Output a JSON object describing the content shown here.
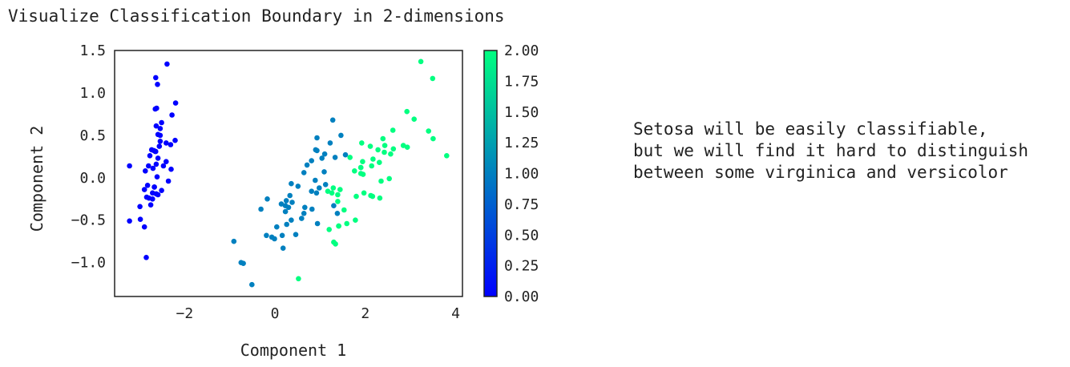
{
  "chart_data": {
    "type": "scatter",
    "title": "Visualize Classification Boundary in 2-dimensions",
    "xlabel": "Component 1",
    "ylabel": "Component 2",
    "xlim": [
      -3.55,
      4.15
    ],
    "ylim": [
      -1.4,
      1.5
    ],
    "xticks": [
      "−2",
      "0",
      "2",
      "4"
    ],
    "xtick_values": [
      -2,
      0,
      2,
      4
    ],
    "yticks": [
      "1.5",
      "1.0",
      "0.5",
      "0.0",
      "−0.5",
      "−1.0"
    ],
    "ytick_values": [
      1.5,
      1.0,
      0.5,
      0.0,
      -0.5,
      -1.0
    ],
    "grid": false,
    "colormap": "winter",
    "colormap_colors": [
      "#0000ff",
      "#00ff80"
    ],
    "colorbar": {
      "range": [
        0,
        2
      ],
      "ticks": [
        "2.00",
        "1.75",
        "1.50",
        "1.25",
        "1.00",
        "0.75",
        "0.50",
        "0.25",
        "0.00"
      ],
      "tick_values": [
        2.0,
        1.75,
        1.5,
        1.25,
        1.0,
        0.75,
        0.5,
        0.25,
        0.0
      ]
    },
    "series": [
      {
        "class_value": 0,
        "color": "#0000ff",
        "points": [
          [
            -2.68,
            0.32
          ],
          [
            -2.71,
            -0.18
          ],
          [
            -2.89,
            -0.14
          ],
          [
            -2.75,
            -0.32
          ],
          [
            -2.73,
            0.33
          ],
          [
            -2.28,
            0.74
          ],
          [
            -2.82,
            -0.09
          ],
          [
            -2.63,
            0.16
          ],
          [
            -2.89,
            -0.58
          ],
          [
            -2.67,
            -0.11
          ],
          [
            -2.51,
            0.65
          ],
          [
            -2.61,
            0.01
          ],
          [
            -2.79,
            -0.24
          ],
          [
            -3.22,
            -0.51
          ],
          [
            -2.64,
            1.18
          ],
          [
            -2.39,
            1.34
          ],
          [
            -2.62,
            0.82
          ],
          [
            -2.65,
            0.31
          ],
          [
            -2.2,
            0.88
          ],
          [
            -2.59,
            0.51
          ],
          [
            -2.31,
            0.39
          ],
          [
            -2.54,
            0.43
          ],
          [
            -3.22,
            0.14
          ],
          [
            -2.3,
            0.1
          ],
          [
            -2.36,
            -0.04
          ],
          [
            -2.51,
            -0.15
          ],
          [
            -2.47,
            0.14
          ],
          [
            -2.56,
            0.37
          ],
          [
            -2.64,
            0.31
          ],
          [
            -2.63,
            -0.19
          ],
          [
            -2.59,
            -0.2
          ],
          [
            -2.41,
            0.41
          ],
          [
            -2.65,
            0.81
          ],
          [
            -2.6,
            1.1
          ],
          [
            -2.67,
            -0.11
          ],
          [
            -2.87,
            0.08
          ],
          [
            -2.63,
            0.61
          ],
          [
            -2.8,
            0.14
          ],
          [
            -2.98,
            -0.49
          ],
          [
            -2.59,
            0.23
          ],
          [
            -2.77,
            0.26
          ],
          [
            -2.85,
            -0.94
          ],
          [
            -2.99,
            -0.34
          ],
          [
            -2.41,
            0.19
          ],
          [
            -2.21,
            0.44
          ],
          [
            -2.71,
            -0.25
          ],
          [
            -2.54,
            0.5
          ],
          [
            -2.84,
            -0.23
          ],
          [
            -2.54,
            0.58
          ],
          [
            -2.7,
            0.11
          ]
        ]
      },
      {
        "class_value": 1,
        "color": "#0080bf",
        "points": [
          [
            1.28,
            0.68
          ],
          [
            0.93,
            0.32
          ],
          [
            1.46,
            0.5
          ],
          [
            0.18,
            -0.83
          ],
          [
            1.09,
            0.07
          ],
          [
            0.64,
            -0.42
          ],
          [
            1.1,
            0.28
          ],
          [
            -0.75,
            -1.0
          ],
          [
            1.04,
            0.23
          ],
          [
            -0.01,
            -0.72
          ],
          [
            -0.51,
            -1.26
          ],
          [
            0.51,
            -0.1
          ],
          [
            0.26,
            -0.55
          ],
          [
            0.98,
            -0.12
          ],
          [
            -0.17,
            -0.25
          ],
          [
            0.93,
            0.47
          ],
          [
            0.66,
            -0.35
          ],
          [
            0.23,
            -0.33
          ],
          [
            0.94,
            -0.54
          ],
          [
            0.04,
            -0.58
          ],
          [
            1.12,
            -0.08
          ],
          [
            0.36,
            -0.07
          ],
          [
            1.3,
            -0.33
          ],
          [
            0.92,
            -0.18
          ],
          [
            0.71,
            0.15
          ],
          [
            0.9,
            0.33
          ],
          [
            1.33,
            0.24
          ],
          [
            1.56,
            0.27
          ],
          [
            0.81,
            -0.16
          ],
          [
            -0.31,
            -0.37
          ],
          [
            -0.07,
            -0.7
          ],
          [
            -0.19,
            -0.68
          ],
          [
            0.14,
            -0.31
          ],
          [
            1.38,
            -0.42
          ],
          [
            0.59,
            -0.48
          ],
          [
            0.81,
            0.2
          ],
          [
            1.22,
            0.41
          ],
          [
            0.82,
            -0.37
          ],
          [
            0.25,
            -0.27
          ],
          [
            0.16,
            -0.68
          ],
          [
            0.46,
            -0.67
          ],
          [
            0.89,
            -0.03
          ],
          [
            0.23,
            -0.4
          ],
          [
            -0.7,
            -1.01
          ],
          [
            0.36,
            -0.5
          ],
          [
            0.33,
            -0.21
          ],
          [
            0.38,
            -0.29
          ],
          [
            0.64,
            0.06
          ],
          [
            -0.91,
            -0.75
          ],
          [
            0.3,
            -0.35
          ]
        ]
      },
      {
        "class_value": 2,
        "color": "#00ff80",
        "points": [
          [
            2.53,
            -0.01
          ],
          [
            1.41,
            -0.57
          ],
          [
            2.62,
            0.34
          ],
          [
            1.97,
            -0.18
          ],
          [
            2.35,
            -0.04
          ],
          [
            3.4,
            0.55
          ],
          [
            0.52,
            -1.19
          ],
          [
            2.93,
            0.36
          ],
          [
            2.32,
            -0.24
          ],
          [
            2.92,
            0.78
          ],
          [
            1.66,
            0.24
          ],
          [
            1.8,
            -0.22
          ],
          [
            2.17,
            0.22
          ],
          [
            1.34,
            -0.78
          ],
          [
            1.59,
            -0.54
          ],
          [
            1.9,
            0.12
          ],
          [
            1.95,
            0.04
          ],
          [
            3.49,
            1.17
          ],
          [
            3.8,
            0.26
          ],
          [
            1.3,
            -0.76
          ],
          [
            2.43,
            0.38
          ],
          [
            1.2,
            -0.61
          ],
          [
            3.5,
            0.46
          ],
          [
            1.39,
            -0.2
          ],
          [
            2.28,
            0.33
          ],
          [
            2.61,
            0.56
          ],
          [
            1.26,
            -0.18
          ],
          [
            1.29,
            -0.12
          ],
          [
            2.12,
            -0.21
          ],
          [
            2.39,
            0.46
          ],
          [
            2.84,
            0.38
          ],
          [
            3.23,
            1.37
          ],
          [
            2.16,
            -0.22
          ],
          [
            1.44,
            -0.14
          ],
          [
            1.78,
            -0.5
          ],
          [
            3.08,
            0.69
          ],
          [
            2.14,
            0.14
          ],
          [
            1.9,
            0.05
          ],
          [
            1.17,
            -0.16
          ],
          [
            2.11,
            0.37
          ],
          [
            2.31,
            0.18
          ],
          [
            1.92,
            0.41
          ],
          [
            1.41,
            -0.57
          ],
          [
            2.56,
            0.28
          ],
          [
            2.42,
            0.3
          ],
          [
            1.94,
            0.19
          ],
          [
            1.53,
            -0.38
          ],
          [
            1.76,
            0.08
          ],
          [
            1.9,
            0.12
          ],
          [
            1.39,
            -0.28
          ]
        ]
      }
    ],
    "annotation": [
      "Setosa will be easily classifiable,",
      "but we will find it hard to distinguish",
      "between some virginica and versicolor"
    ]
  }
}
